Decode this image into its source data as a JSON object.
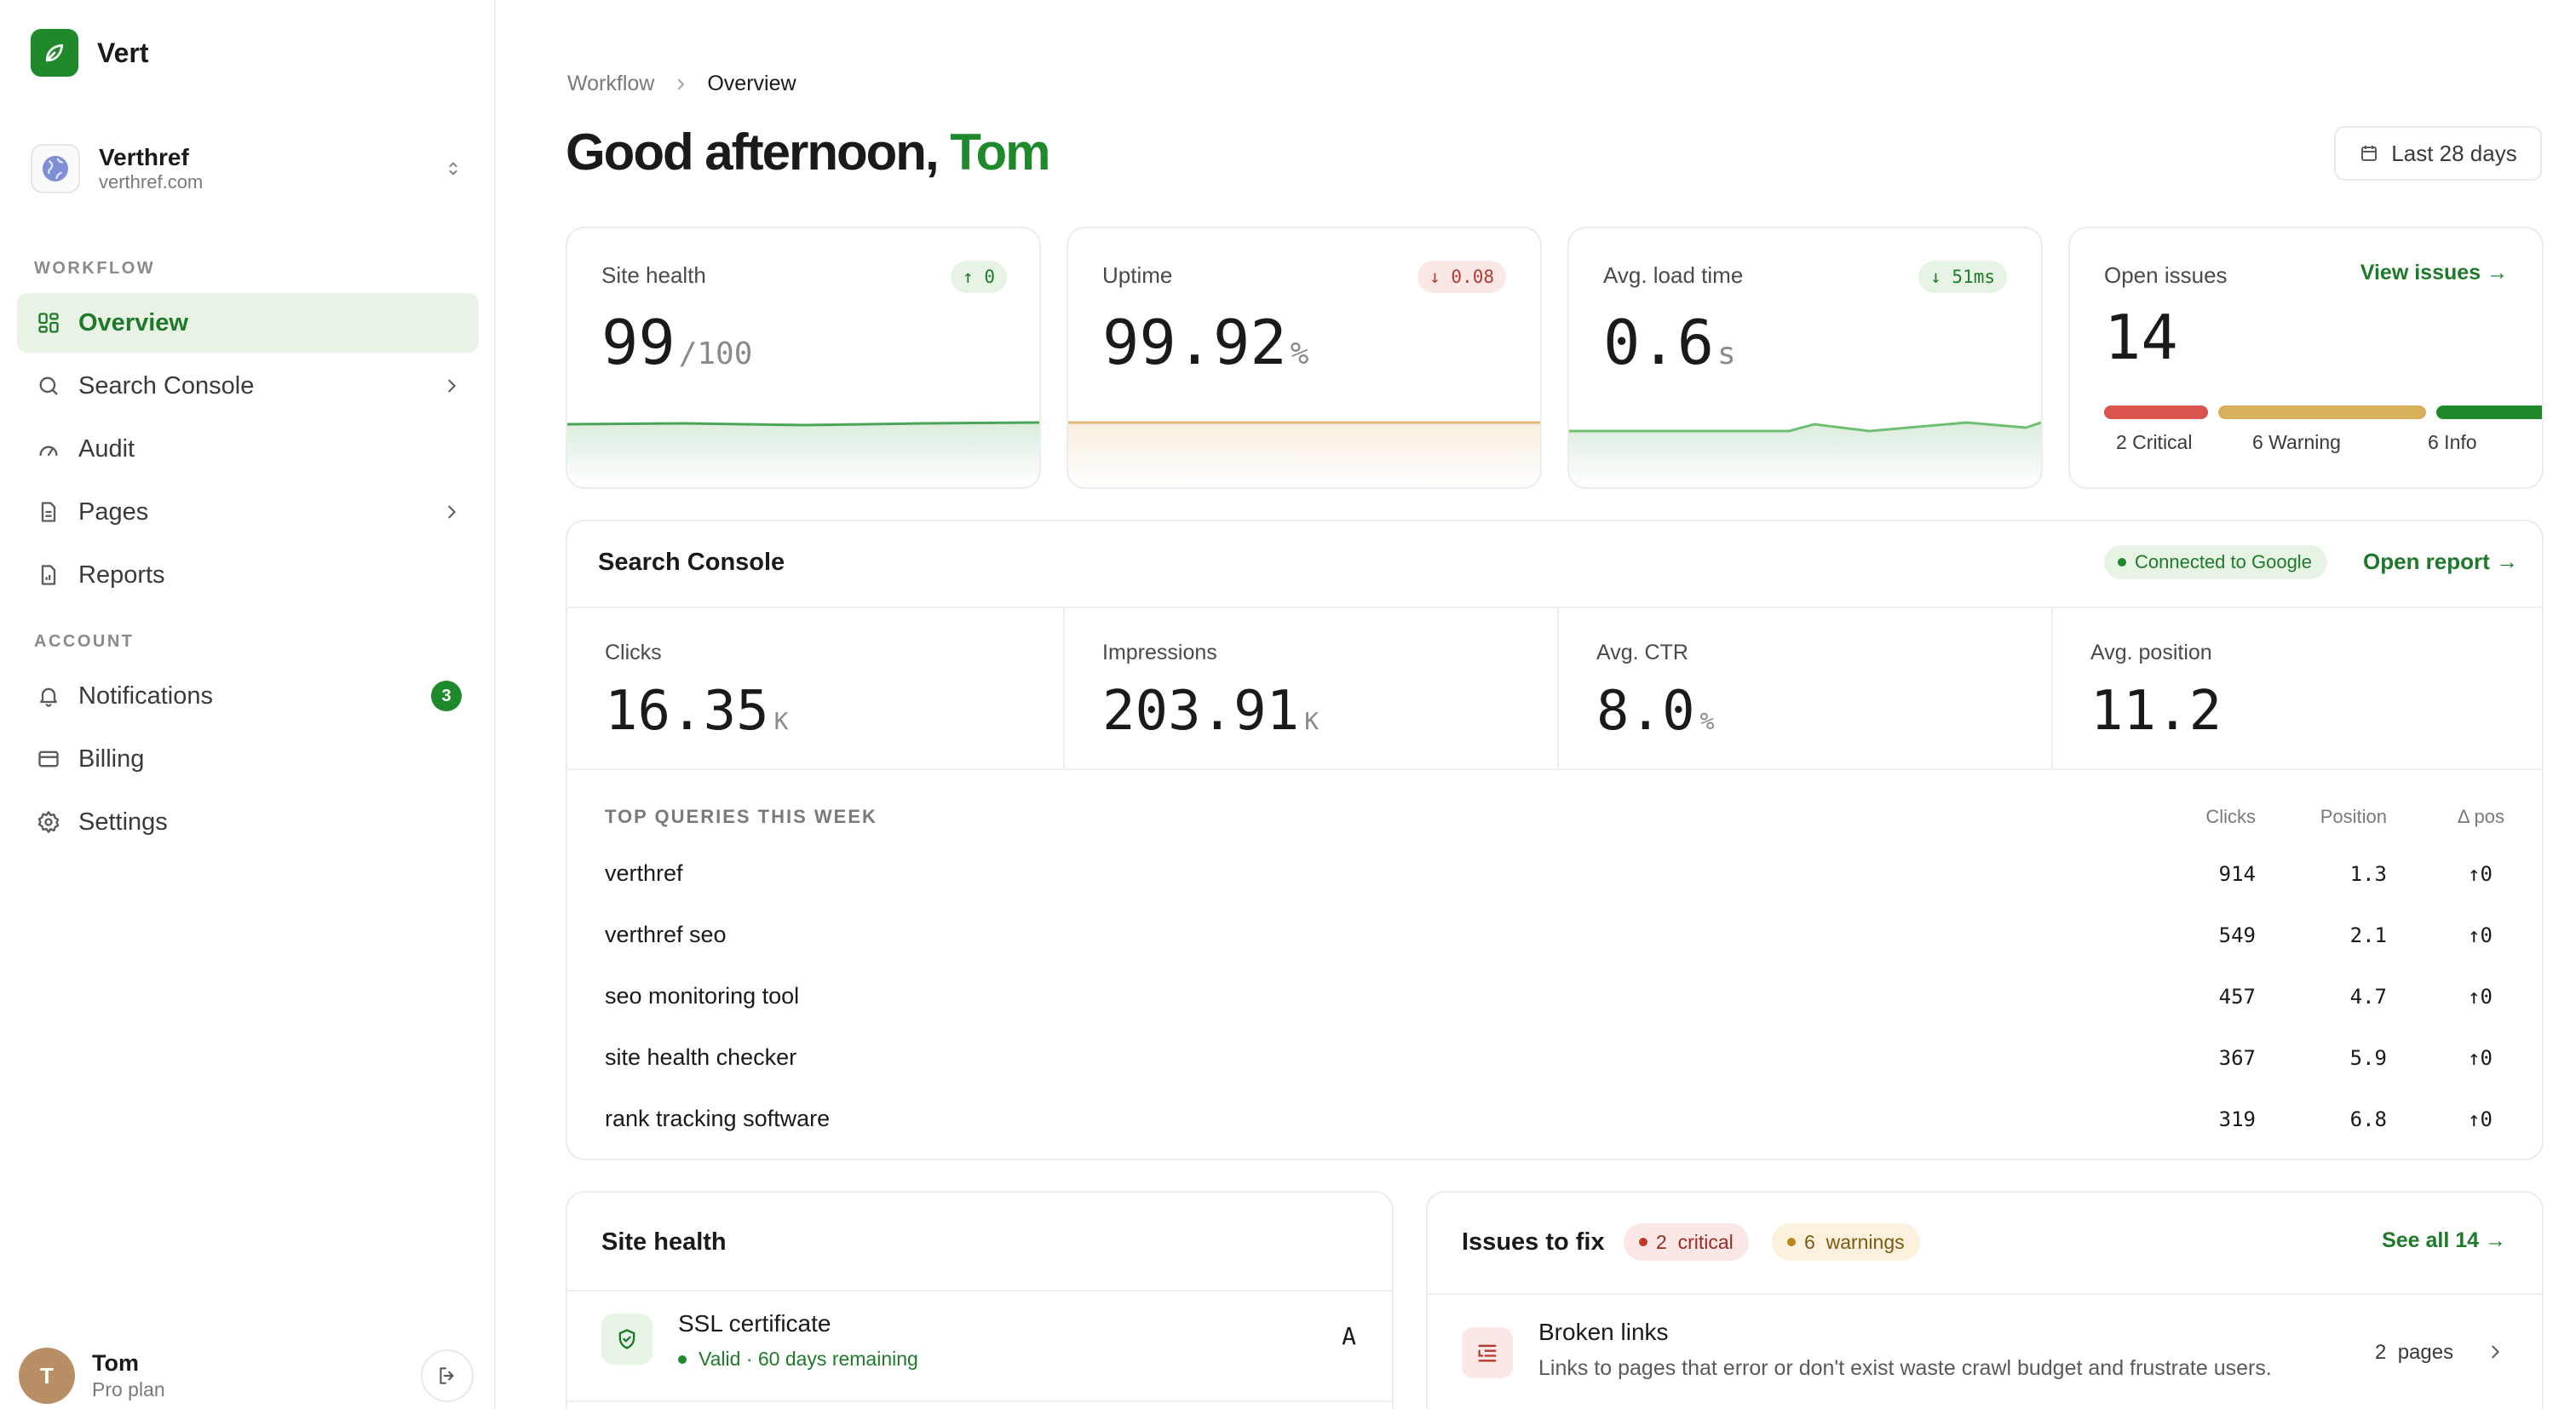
{
  "brand": {
    "name": "Vert"
  },
  "workspace": {
    "name": "Verthref",
    "domain": "verthref.com"
  },
  "sidebar": {
    "workflow_label": "WORKFLOW",
    "workflow_items": [
      {
        "label": "Overview",
        "icon": "grid-icon",
        "active": true
      },
      {
        "label": "Search Console",
        "icon": "search-icon"
      },
      {
        "label": "Audit",
        "icon": "gauge-icon"
      },
      {
        "label": "Pages",
        "icon": "file-icon"
      },
      {
        "label": "Reports",
        "icon": "report-icon"
      }
    ],
    "account_label": "ACCOUNT",
    "account_items": [
      {
        "label": "Notifications",
        "icon": "bell-icon",
        "badge": "3"
      },
      {
        "label": "Billing",
        "icon": "card-icon"
      },
      {
        "label": "Settings",
        "icon": "gear-icon"
      }
    ]
  },
  "user": {
    "initial": "T",
    "name": "Tom",
    "plan": "Pro plan"
  },
  "breadcrumb": {
    "root": "Workflow",
    "current": "Overview"
  },
  "greeting": {
    "prefix": "Good afternoon,",
    "name": "Tom"
  },
  "date_range": {
    "label": "Last 28 days"
  },
  "kpis": [
    {
      "title": "Site health",
      "delta": "0",
      "delta_dir": "up",
      "value": "99",
      "unit": "/100"
    },
    {
      "title": "Uptime",
      "delta": "0.08",
      "delta_dir": "down",
      "value": "99.92",
      "unit": "%"
    },
    {
      "title": "Avg. load time",
      "delta": "51ms",
      "delta_dir": "up",
      "value": "0.6",
      "unit": "s"
    }
  ],
  "open_issues": {
    "title": "Open issues",
    "link": "View issues",
    "value": "14",
    "segments": [
      {
        "label": "2 Critical",
        "count": 2,
        "color": "#d9534f"
      },
      {
        "label": "6 Warning",
        "count": 6,
        "color": "#d8b05a"
      },
      {
        "label": "6 Info",
        "count": 6,
        "color": "#1e8a2c"
      }
    ]
  },
  "search_console": {
    "title": "Search Console",
    "status": "Connected to Google",
    "open_label": "Open report",
    "metrics": [
      {
        "label": "Clicks",
        "value": "16.35",
        "unit": "K"
      },
      {
        "label": "Impressions",
        "value": "203.91",
        "unit": "K"
      },
      {
        "label": "Avg. CTR",
        "value": "8.0",
        "unit": "%"
      },
      {
        "label": "Avg. position",
        "value": "11.2",
        "unit": ""
      }
    ],
    "top_queries_label": "TOP QUERIES THIS WEEK",
    "columns": {
      "clicks": "Clicks",
      "position": "Position",
      "dpos": "Δ pos"
    },
    "queries": [
      {
        "query": "verthref",
        "clicks": "914",
        "position": "1.3",
        "dpos": "0"
      },
      {
        "query": "verthref seo",
        "clicks": "549",
        "position": "2.1",
        "dpos": "0"
      },
      {
        "query": "seo monitoring tool",
        "clicks": "457",
        "position": "4.7",
        "dpos": "0"
      },
      {
        "query": "site health checker",
        "clicks": "367",
        "position": "5.9",
        "dpos": "0"
      },
      {
        "query": "rank tracking software",
        "clicks": "319",
        "position": "6.8",
        "dpos": "0"
      }
    ]
  },
  "site_health_card": {
    "title": "Site health",
    "ssl_title": "SSL certificate",
    "ssl_status": "Valid · 60 days remaining",
    "ssl_grade": "A"
  },
  "issues_card": {
    "title": "Issues to fix",
    "critical_count": "2",
    "critical_label": "critical",
    "warning_count": "6",
    "warning_label": "warnings",
    "see_all": "See all 14",
    "first_issue": {
      "title": "Broken links",
      "description": "Links to pages that error or don't exist waste crawl budget and frustrate users.",
      "count": "2",
      "count_label": "pages"
    }
  },
  "colors": {
    "accent": "#1e8a2c",
    "critical": "#d9534f",
    "warning": "#d8b05a"
  }
}
